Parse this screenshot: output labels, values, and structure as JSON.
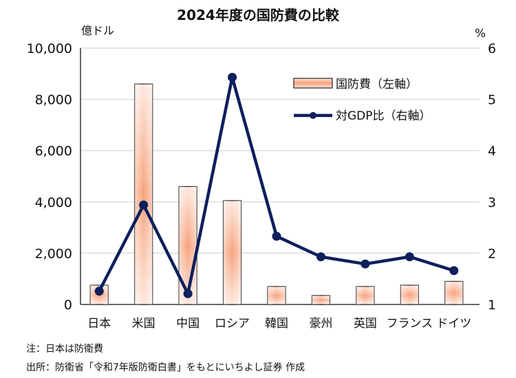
{
  "chart_data": {
    "type": "bar+line",
    "title": "2024年度の国防費の比較",
    "ylabel_left": "億ドル",
    "ylabel_right": "%",
    "categories": [
      "日本",
      "米国",
      "中国",
      "ロシア",
      "韓国",
      "豪州",
      "英国",
      "フランス",
      "ドイツ"
    ],
    "ylim_left": [
      0,
      10000
    ],
    "yticks_left": [
      "0",
      "2,000",
      "4,000",
      "6,000",
      "8,000",
      "10,000"
    ],
    "ylim_right": [
      1,
      6
    ],
    "yticks_right": [
      "1",
      "2",
      "3",
      "4",
      "5",
      "6"
    ],
    "grid": true,
    "legend_position": "top-right",
    "series": [
      {
        "name": "国防費（左軸）",
        "type": "bar",
        "axis": "left",
        "color": "#f7a27c",
        "values": [
          750,
          8600,
          4600,
          4050,
          700,
          350,
          700,
          750,
          900
        ]
      },
      {
        "name": "対GDP比（右軸）",
        "type": "line",
        "axis": "right",
        "color": "#0d1f5c",
        "values": [
          1.26,
          2.94,
          1.21,
          5.43,
          2.33,
          1.93,
          1.79,
          1.93,
          1.66
        ]
      }
    ]
  },
  "notes": {
    "note1": "注：日本は防衛費",
    "source": "出所：防衛省「令和7年版防衛白書」をもとにいちよし証券 作成"
  }
}
